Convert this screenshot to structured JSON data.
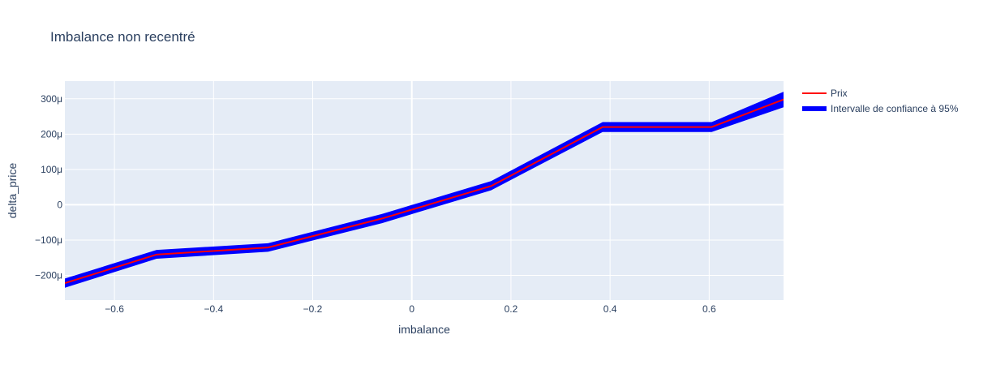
{
  "chart_data": {
    "type": "line",
    "title": "Imbalance non recentré",
    "xlabel": "imbalance",
    "ylabel": "delta_price",
    "xlim": [
      -0.7,
      0.75
    ],
    "ylim": [
      -0.00027,
      0.00035
    ],
    "x_ticks": [
      -0.6,
      -0.4,
      -0.2,
      0,
      0.2,
      0.4,
      0.6
    ],
    "x_tick_labels": [
      "−0.6",
      "−0.4",
      "−0.2",
      "0",
      "0.2",
      "0.4",
      "0.6"
    ],
    "y_ticks": [
      -0.0002,
      -0.0001,
      0,
      0.0001,
      0.0002,
      0.0003
    ],
    "y_tick_labels": [
      "−200μ",
      "−100μ",
      "0",
      "100μ",
      "200μ",
      "300μ"
    ],
    "grid": true,
    "legend_position": "top-right",
    "x": [
      -0.7,
      -0.515,
      -0.29,
      -0.06,
      0.16,
      0.385,
      0.605,
      0.75
    ],
    "series": [
      {
        "name": "Prix",
        "color": "#ff0000",
        "values": [
          -0.000222,
          -0.000141,
          -0.000121,
          -3.9e-05,
          5.3e-05,
          0.00022,
          0.00022,
          0.000298
        ]
      },
      {
        "name": "Intervalle de confiance à 95%",
        "color": "#0000ff",
        "upper": [
          -0.000209,
          -0.000128,
          -0.000109,
          -2.6e-05,
          6.7e-05,
          0.000234,
          0.000234,
          0.00032
        ],
        "lower": [
          -0.000235,
          -0.000153,
          -0.000133,
          -5.2e-05,
          4.1e-05,
          0.000206,
          0.000206,
          0.000276
        ]
      }
    ]
  }
}
